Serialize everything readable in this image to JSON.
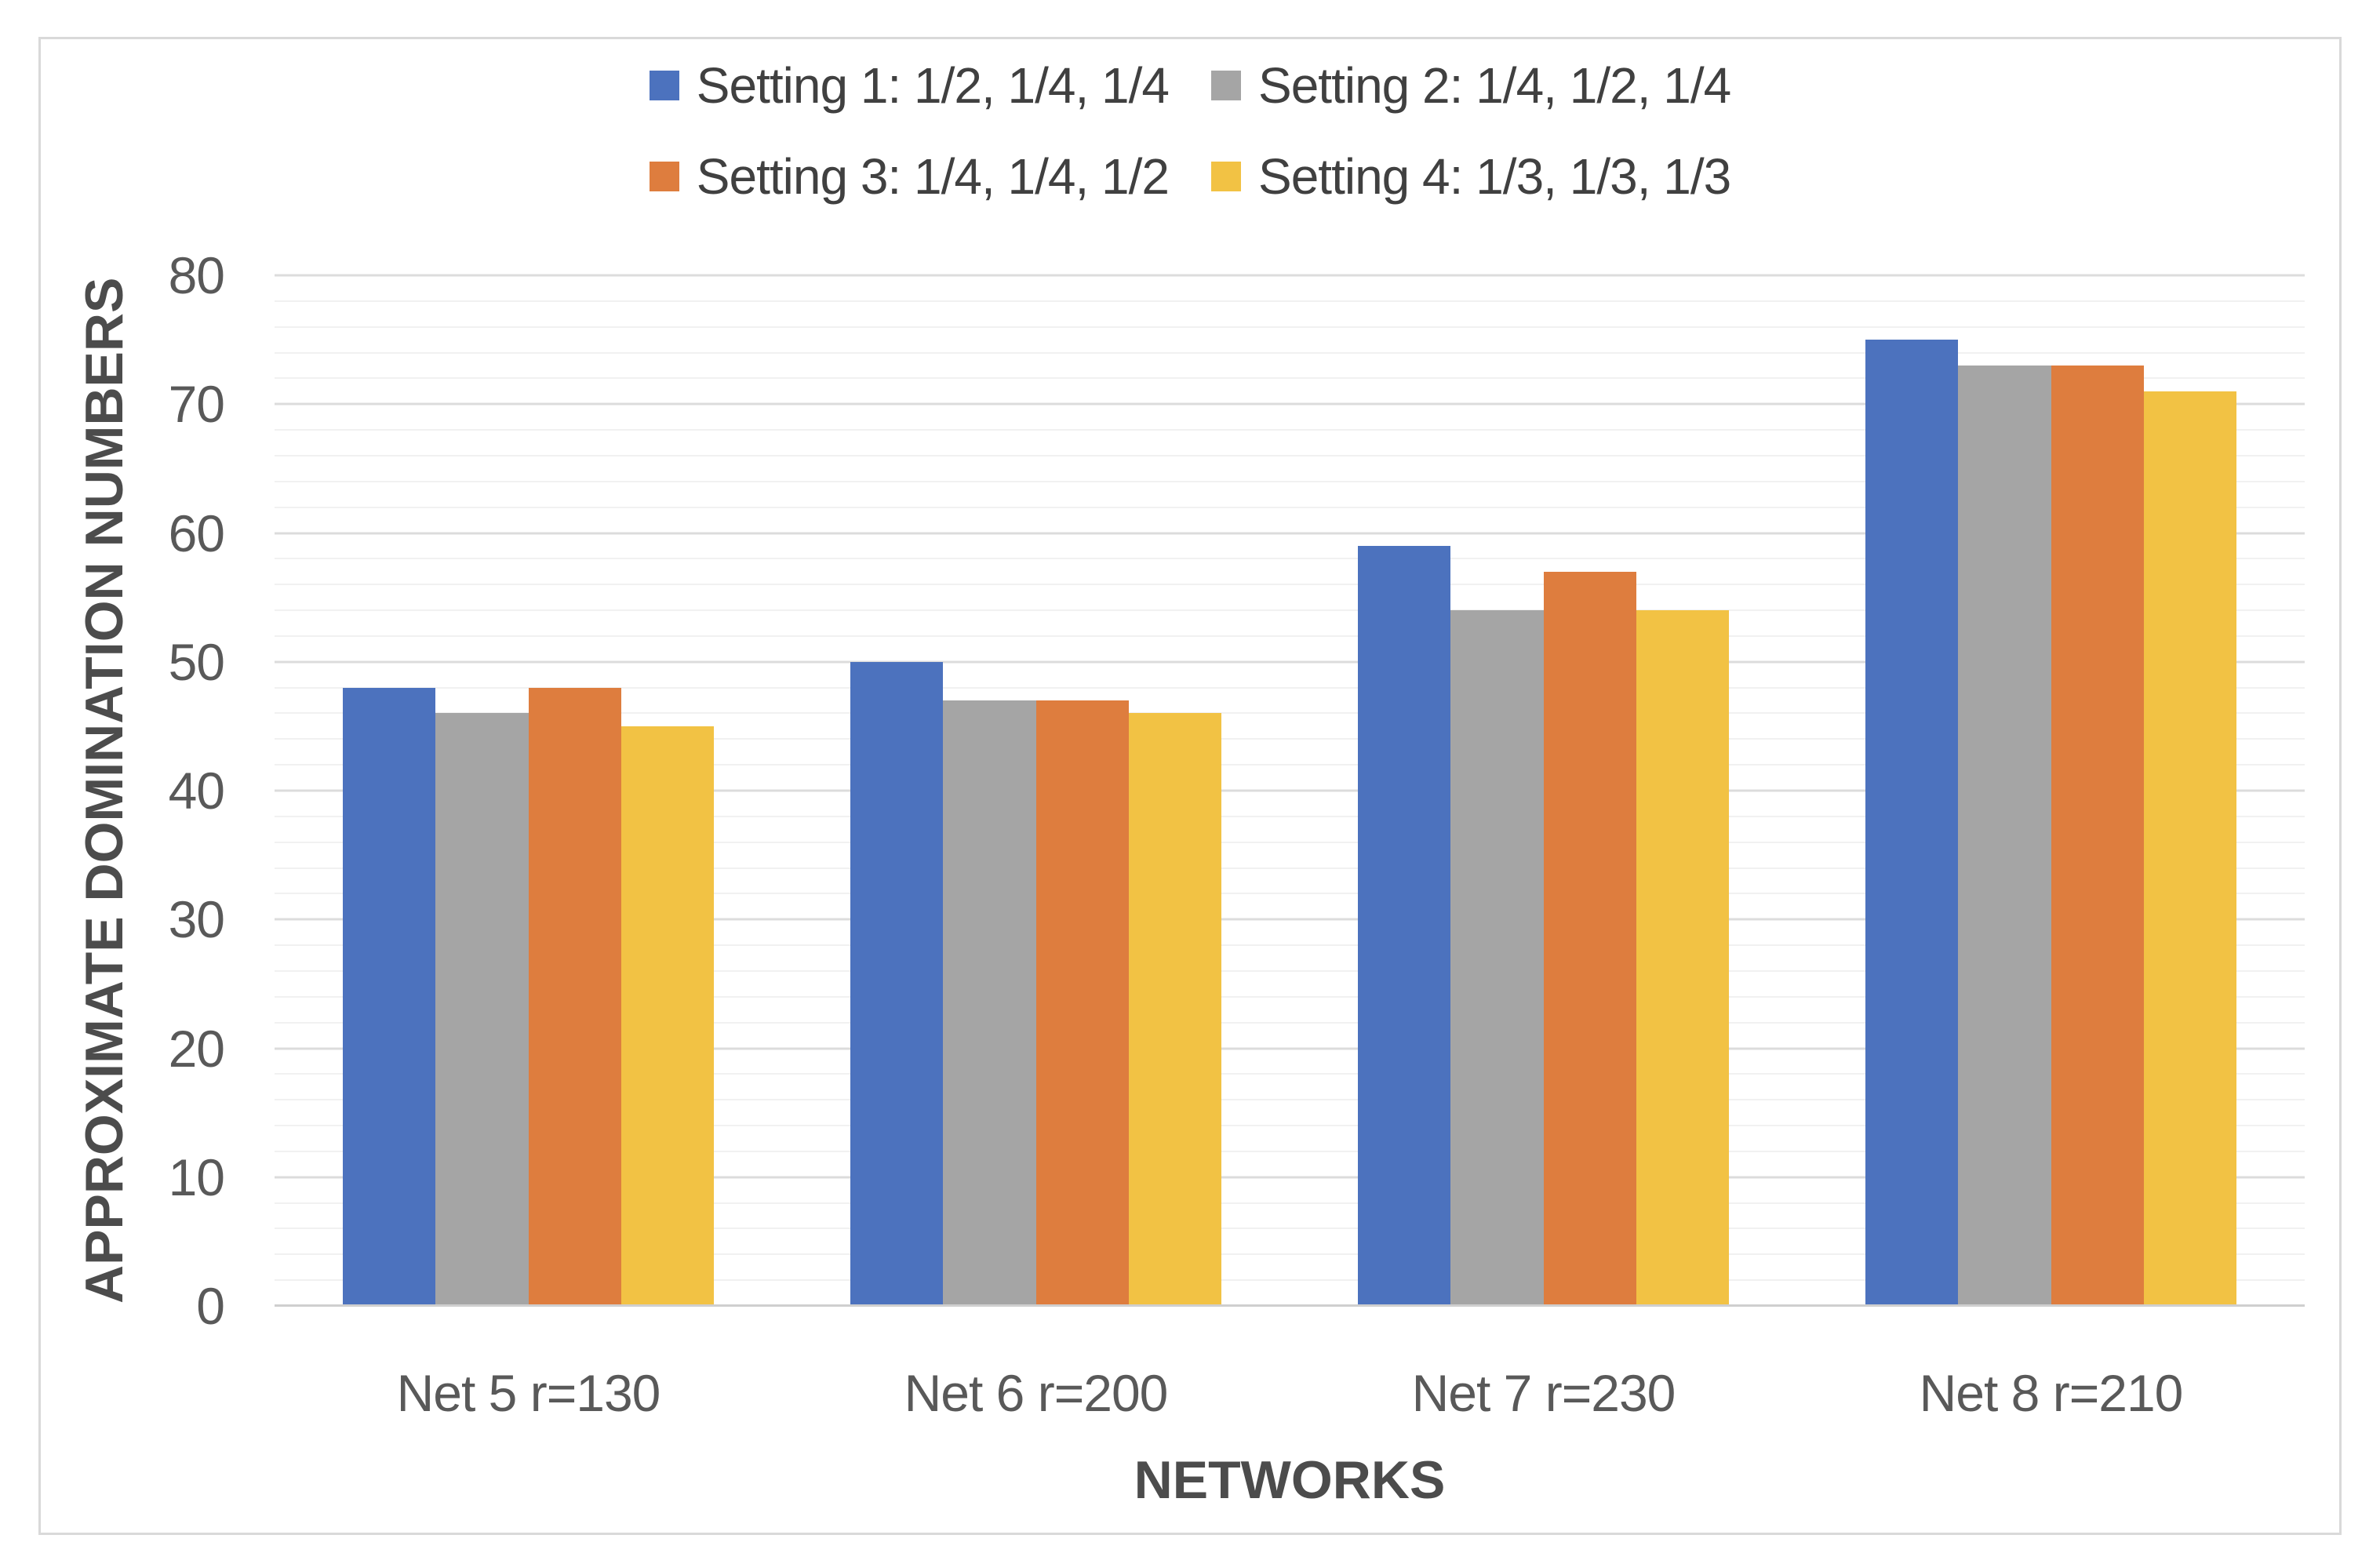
{
  "chart_data": {
    "type": "bar",
    "title": "",
    "categories": [
      "Net 5 r=130",
      "Net 6 r=200",
      "Net 7 r=230",
      "Net 8 r=210"
    ],
    "series": [
      {
        "name": "Setting 1: 1/2, 1/4, 1/4",
        "color": "#4c72be",
        "values": [
          48,
          50,
          59,
          75
        ]
      },
      {
        "name": "Setting 2: 1/4, 1/2, 1/4",
        "color": "#a5a5a5",
        "values": [
          46,
          47,
          54,
          73
        ]
      },
      {
        "name": "Setting 3: 1/4, 1/4, 1/2",
        "color": "#de7d3e",
        "values": [
          48,
          47,
          57,
          73
        ]
      },
      {
        "name": "Setting 4: 1/3, 1/3, 1/3",
        "color": "#f2c244",
        "values": [
          45,
          46,
          54,
          71
        ]
      }
    ],
    "xlabel": "NETWORKS",
    "ylabel": "APPROXIMATE DOMINATION NUMBERS",
    "ylim": [
      0,
      80
    ],
    "y_major_step": 10,
    "y_minor_step": 2,
    "y_tick_labels": [
      "0",
      "10",
      "20",
      "30",
      "40",
      "50",
      "60",
      "70",
      "80"
    ],
    "legend_position": "top",
    "legend_rows": 2,
    "grid": "horizontal major and minor, no vertical"
  },
  "style_colors": {
    "major_gridline": "#dcdcdc",
    "minor_gridline": "#f1f1f1",
    "axis_line": "#cfcfcf",
    "tick_text": "#595959",
    "title_text": "#4c4c4c",
    "legend_text": "#404040",
    "frame_border": "#d9d9d9",
    "background": "#ffffff"
  }
}
